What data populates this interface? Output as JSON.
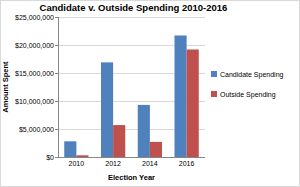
{
  "chart_data": {
    "type": "bar",
    "title": "Candidate v. Outside Spending 2010-2016",
    "x_label": "Election Year",
    "y_label": "Amount Spent",
    "categories": [
      "2010",
      "2012",
      "2014",
      "2016"
    ],
    "series": [
      {
        "name": "Candidate Spending",
        "color": "#4f81bd",
        "values": [
          2800000,
          16900000,
          9300000,
          21700000
        ]
      },
      {
        "name": "Outside Spending",
        "color": "#c0504d",
        "values": [
          300000,
          5700000,
          2700000,
          19200000
        ]
      }
    ],
    "ylim": [
      0,
      25000000
    ],
    "yticks": [
      {
        "value": 0,
        "label": "$0"
      },
      {
        "value": 5000000,
        "label": "$5,000,000"
      },
      {
        "value": 10000000,
        "label": "$10,000,000"
      },
      {
        "value": 15000000,
        "label": "$15,000,000"
      },
      {
        "value": 20000000,
        "label": "$20,000,000"
      },
      {
        "value": 25000000,
        "label": "$25,000,000"
      }
    ],
    "grid": true,
    "legend": "right"
  }
}
